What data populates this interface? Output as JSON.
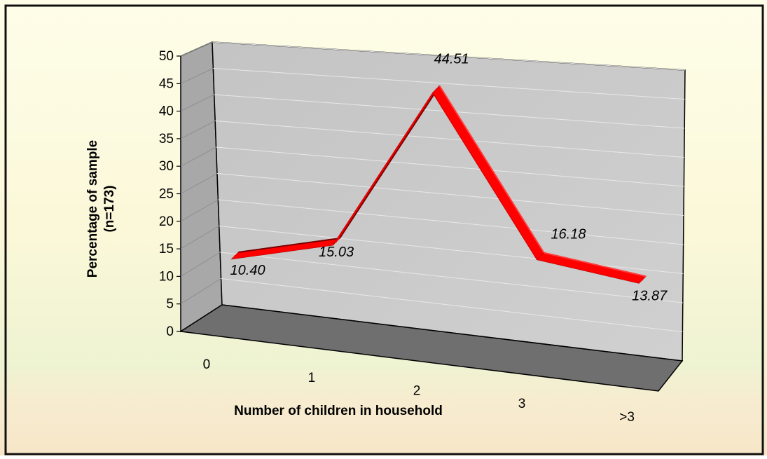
{
  "chart_data": {
    "type": "line",
    "title": "",
    "xlabel": "Number of children in household",
    "ylabel_line1": "Percentage of sample",
    "ylabel_line2": "(n=173)",
    "categories": [
      "0",
      "1",
      "2",
      "3",
      ">3"
    ],
    "series": [
      {
        "values": [
          10.4,
          15.03,
          44.51,
          16.18,
          13.87
        ]
      }
    ],
    "data_labels": [
      "10.40",
      "15.03",
      "44.51",
      "16.18",
      "13.87"
    ],
    "ylim": [
      0,
      50
    ],
    "yticks": [
      "0",
      "5",
      "10",
      "15",
      "20",
      "25",
      "30",
      "35",
      "40",
      "45",
      "50"
    ],
    "grid": true,
    "style": "3d-ribbon",
    "line_color": "#ff0000"
  }
}
